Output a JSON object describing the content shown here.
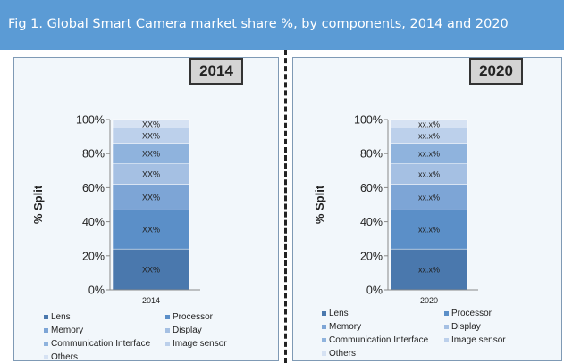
{
  "header": {
    "title": "Fig 1. Global Smart Camera market share %, by components, 2014 and 2020"
  },
  "chart_data": [
    {
      "type": "bar",
      "stacked": true,
      "year_label": "2014",
      "categories": [
        "2014"
      ],
      "ylabel": "% Split",
      "ylim": [
        0,
        100
      ],
      "yticks": [
        "0%",
        "20%",
        "40%",
        "60%",
        "80%",
        "100%"
      ],
      "series": [
        {
          "name": "Lens",
          "values": [
            24
          ],
          "label": "XX%",
          "color": "#4a78ad"
        },
        {
          "name": "Processor",
          "values": [
            23
          ],
          "label": "XX%",
          "color": "#5b8fc8"
        },
        {
          "name": "Memory",
          "values": [
            15
          ],
          "label": "XX%",
          "color": "#7da5d6"
        },
        {
          "name": "Display",
          "values": [
            12
          ],
          "label": "XX%",
          "color": "#a5c0e3"
        },
        {
          "name": "Communication Interface",
          "values": [
            12
          ],
          "label": "XX%",
          "color": "#8fb3dd"
        },
        {
          "name": "Image sensor",
          "values": [
            9
          ],
          "label": "XX%",
          "color": "#bcd0eb"
        },
        {
          "name": "Others",
          "values": [
            5
          ],
          "label": "XX%",
          "color": "#d6e2f3"
        }
      ]
    },
    {
      "type": "bar",
      "stacked": true,
      "year_label": "2020",
      "categories": [
        "2020"
      ],
      "ylabel": "% Split",
      "ylim": [
        0,
        100
      ],
      "yticks": [
        "0%",
        "20%",
        "40%",
        "60%",
        "80%",
        "100%"
      ],
      "series": [
        {
          "name": "Lens",
          "values": [
            24
          ],
          "label": "xx.x%",
          "color": "#4a78ad"
        },
        {
          "name": "Processor",
          "values": [
            23
          ],
          "label": "xx.x%",
          "color": "#5b8fc8"
        },
        {
          "name": "Memory",
          "values": [
            15
          ],
          "label": "xx.x%",
          "color": "#7da5d6"
        },
        {
          "name": "Display",
          "values": [
            12
          ],
          "label": "xx.x%",
          "color": "#a5c0e3"
        },
        {
          "name": "Communication Interface",
          "values": [
            12
          ],
          "label": "xx.x%",
          "color": "#8fb3dd"
        },
        {
          "name": "Image sensor",
          "values": [
            9
          ],
          "label": "xx.x%",
          "color": "#bcd0eb"
        },
        {
          "name": "Others",
          "values": [
            5
          ],
          "label": "xx.x%",
          "color": "#d6e2f3"
        }
      ]
    }
  ]
}
